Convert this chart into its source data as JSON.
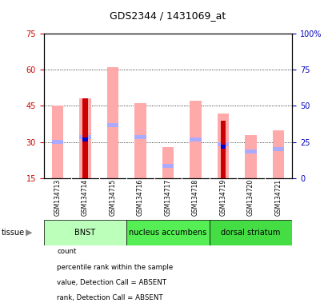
{
  "title": "GDS2344 / 1431069_at",
  "samples": [
    "GSM134713",
    "GSM134714",
    "GSM134715",
    "GSM134716",
    "GSM134717",
    "GSM134718",
    "GSM134719",
    "GSM134720",
    "GSM134721"
  ],
  "group_names": [
    "BNST",
    "nucleus accumbens",
    "dorsal striatum"
  ],
  "group_ranges": [
    [
      0,
      2
    ],
    [
      3,
      5
    ],
    [
      6,
      8
    ]
  ],
  "group_bg_colors": [
    "#bbffbb",
    "#55ee55",
    "#44dd44"
  ],
  "ylim_left": [
    15,
    75
  ],
  "ylim_right": [
    0,
    100
  ],
  "yticks_left": [
    15,
    30,
    45,
    60,
    75
  ],
  "yticks_right": [
    0,
    25,
    50,
    75,
    100
  ],
  "value_absent": [
    45,
    48,
    61,
    46,
    28,
    47,
    42,
    33,
    35
  ],
  "rank_absent": [
    30,
    32,
    37,
    32,
    20,
    31,
    29,
    26,
    27
  ],
  "count_present": [
    null,
    48,
    null,
    null,
    null,
    null,
    39,
    null,
    null
  ],
  "rank_present": [
    null,
    31,
    null,
    null,
    null,
    null,
    28,
    null,
    null
  ],
  "colors": {
    "count": "#cc0000",
    "rank": "#0000cc",
    "value_absent": "#ffaaaa",
    "rank_absent": "#aaaaff"
  },
  "legend_items": [
    {
      "color": "#cc0000",
      "label": "count"
    },
    {
      "color": "#0000cc",
      "label": "percentile rank within the sample"
    },
    {
      "color": "#ffaaaa",
      "label": "value, Detection Call = ABSENT"
    },
    {
      "color": "#aaaaff",
      "label": "rank, Detection Call = ABSENT"
    }
  ]
}
